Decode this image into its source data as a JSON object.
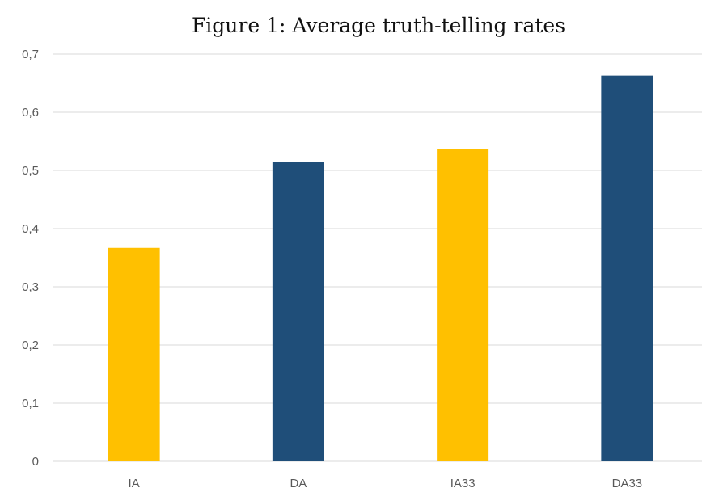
{
  "chart_data": {
    "type": "bar",
    "title": "Figure 1: Average truth-telling rates",
    "xlabel": "",
    "ylabel": "",
    "categories": [
      "IA",
      "DA",
      "IA33",
      "DA33"
    ],
    "values": [
      0.367,
      0.514,
      0.537,
      0.663
    ],
    "colors": [
      "#FFC000",
      "#1F4E79",
      "#FFC000",
      "#1F4E79"
    ],
    "ylim": [
      0,
      0.7
    ],
    "yticks": [
      0,
      0.1,
      0.2,
      0.3,
      0.4,
      0.5,
      0.6,
      0.7
    ],
    "ytick_labels": [
      "0",
      "0,1",
      "0,2",
      "0,3",
      "0,4",
      "0,5",
      "0,6",
      "0,7"
    ],
    "grid": true,
    "legend": "none"
  }
}
